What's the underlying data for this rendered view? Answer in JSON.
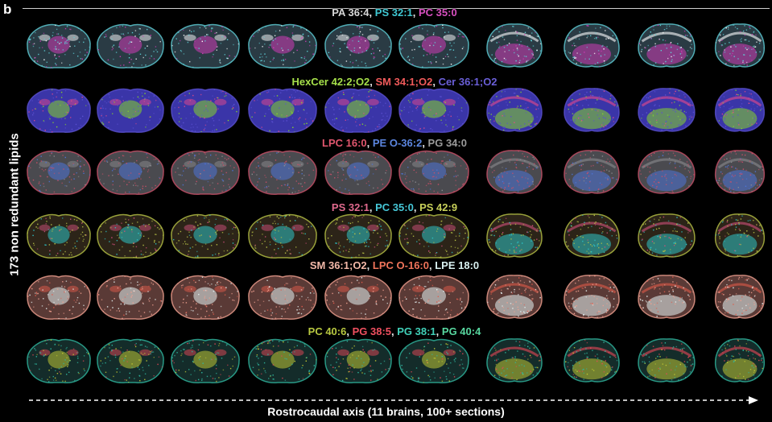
{
  "figure": {
    "panel_letter": "b",
    "y_axis_label": "173 non redundant lipids",
    "x_axis_label": "Rostrocaudal axis (11 brains, 100+ sections)"
  },
  "rows": [
    {
      "lipids": [
        {
          "name": "PA 36:4",
          "color": "#d8d8d8"
        },
        {
          "name": "PS 32:1",
          "color": "#3fc9d4"
        },
        {
          "name": "PC 35:0",
          "color": "#d84fc0"
        }
      ],
      "base": "#2a3b44",
      "speckle": "#5fd0d8",
      "accent": "#d03cb8",
      "accent2": "#ffffff"
    },
    {
      "lipids": [
        {
          "name": "HexCer 42:2;O2",
          "color": "#a6e04a"
        },
        {
          "name": "SM 34:1;O2",
          "color": "#f05a5a"
        },
        {
          "name": "Cer 36:1;O2",
          "color": "#6a5fd8"
        }
      ],
      "base": "#3a35a8",
      "speckle": "#5a50d0",
      "accent": "#86d62a",
      "accent2": "#e84a8a"
    },
    {
      "lipids": [
        {
          "name": "LPC 16:0",
          "color": "#e0566e"
        },
        {
          "name": "PE O-36:2",
          "color": "#5c86e0"
        },
        {
          "name": "PG 34:0",
          "color": "#9a9a9a"
        }
      ],
      "base": "#4a4a4f",
      "speckle": "#c95068",
      "accent": "#4e74d8",
      "accent2": "#8c8c90"
    },
    {
      "lipids": [
        {
          "name": "PS 32:1",
          "color": "#e06a8e"
        },
        {
          "name": "PC 35:0",
          "color": "#46c8d8"
        },
        {
          "name": "PS 42:9",
          "color": "#c8d05a"
        }
      ],
      "base": "#2c2418",
      "speckle": "#b9c446",
      "accent": "#2fc4c8",
      "accent2": "#d0507c"
    },
    {
      "lipids": [
        {
          "name": "SM 36:1;O2",
          "color": "#f2b8a8"
        },
        {
          "name": "LPC O-16:0",
          "color": "#f0745a"
        },
        {
          "name": "LPE 18:0",
          "color": "#d8f0f0"
        }
      ],
      "base": "#5a3a36",
      "speckle": "#f0a090",
      "accent": "#e8f4f4",
      "accent2": "#e05a4a"
    },
    {
      "lipids": [
        {
          "name": "PC 40:6",
          "color": "#b8c840"
        },
        {
          "name": "PG 38:5",
          "color": "#f05060"
        },
        {
          "name": "PG 38:1",
          "color": "#40d0b8"
        },
        {
          "name": "PG 40:4",
          "color": "#58d8a0"
        }
      ],
      "base": "#142c2a",
      "speckle": "#2fb8a0",
      "accent": "#c0c834",
      "accent2": "#e84858"
    }
  ]
}
